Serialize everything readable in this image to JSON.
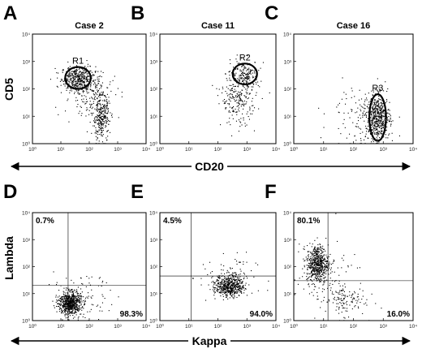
{
  "figure": {
    "ylabel_top": "CD5",
    "xlabel_top": "CD20",
    "ylabel_bottom": "Lambda",
    "xlabel_bottom": "Kappa"
  },
  "chart_data": [
    {
      "type": "scatter",
      "panel": "A",
      "title": "Case 2",
      "xlabel": "CD20",
      "ylabel": "CD5",
      "xscale": "log",
      "yscale": "log",
      "xlim": [
        1,
        10000
      ],
      "ylim": [
        1,
        10000
      ],
      "x_ticks": [
        "10⁰",
        "10¹",
        "10²",
        "10³",
        "10⁴"
      ],
      "y_ticks": [
        "10⁰",
        "10¹",
        "10²",
        "10³",
        "10⁴"
      ],
      "gates": [
        {
          "label": "R1",
          "center": [
            40,
            250
          ],
          "semi_axes_decades": [
            0.45,
            0.4
          ]
        }
      ],
      "clusters": [
        {
          "x": 40,
          "y": 250,
          "spread": [
            0.3,
            0.22
          ],
          "n": 420
        },
        {
          "x": 250,
          "y": 9,
          "spread": [
            0.15,
            0.45
          ],
          "n": 300
        },
        {
          "x": 120,
          "y": 60,
          "spread": [
            0.5,
            0.4
          ],
          "n": 160
        }
      ]
    },
    {
      "type": "scatter",
      "panel": "B",
      "title": "Case 11",
      "xlabel": "CD20",
      "ylabel": "CD5",
      "xscale": "log",
      "yscale": "log",
      "xlim": [
        1,
        10000
      ],
      "ylim": [
        1,
        10000
      ],
      "x_ticks": [
        "10⁰",
        "10¹",
        "10²",
        "10³",
        "10⁴"
      ],
      "y_ticks": [
        "10⁰",
        "10¹",
        "10²",
        "10³",
        "10⁴"
      ],
      "gates": [
        {
          "label": "R2",
          "center": [
            850,
            350
          ],
          "semi_axes_decades": [
            0.42,
            0.38
          ]
        }
      ],
      "clusters": [
        {
          "x": 850,
          "y": 350,
          "spread": [
            0.25,
            0.25
          ],
          "n": 160
        },
        {
          "x": 500,
          "y": 50,
          "spread": [
            0.3,
            0.5
          ],
          "n": 260
        }
      ]
    },
    {
      "type": "scatter",
      "panel": "C",
      "title": "Case 16",
      "xlabel": "CD20",
      "ylabel": "CD5",
      "xscale": "log",
      "yscale": "log",
      "xlim": [
        1,
        10000
      ],
      "ylim": [
        1,
        10000
      ],
      "x_ticks": [
        "10⁰",
        "10¹",
        "10²",
        "10³",
        "10⁴"
      ],
      "y_ticks": [
        "10⁰",
        "10¹",
        "10²",
        "10³",
        "10⁴"
      ],
      "gates": [
        {
          "label": "R3",
          "center": [
            650,
            9
          ],
          "semi_axes_decades": [
            0.28,
            0.85
          ]
        }
      ],
      "clusters": [
        {
          "x": 650,
          "y": 9,
          "spread": [
            0.2,
            0.4
          ],
          "n": 520
        },
        {
          "x": 150,
          "y": 10,
          "spread": [
            0.5,
            0.6
          ],
          "n": 120
        }
      ]
    },
    {
      "type": "scatter",
      "panel": "D",
      "xlabel": "Kappa",
      "ylabel": "Lambda",
      "xscale": "log",
      "yscale": "log",
      "xlim": [
        1,
        10000
      ],
      "ylim": [
        1,
        10000
      ],
      "x_ticks": [
        "10⁰",
        "10¹",
        "10²",
        "10³",
        "10⁴"
      ],
      "y_ticks": [
        "10⁰",
        "10¹",
        "10²",
        "10³",
        "10⁴"
      ],
      "quadrant": {
        "x": 18,
        "y": 20
      },
      "quadrant_labels": [
        {
          "text": "0.7%",
          "corner": "top-left"
        },
        {
          "text": "98.3%",
          "corner": "bottom-right"
        }
      ],
      "clusters": [
        {
          "x": 20,
          "y": 4.5,
          "spread": [
            0.2,
            0.22
          ],
          "n": 650
        },
        {
          "x": 60,
          "y": 8,
          "spread": [
            0.5,
            0.4
          ],
          "n": 80
        }
      ]
    },
    {
      "type": "scatter",
      "panel": "E",
      "xlabel": "Kappa",
      "ylabel": "Lambda",
      "xscale": "log",
      "yscale": "log",
      "xlim": [
        1,
        10000
      ],
      "ylim": [
        1,
        10000
      ],
      "x_ticks": [
        "10⁰",
        "10¹",
        "10²",
        "10³",
        "10⁴"
      ],
      "y_ticks": [
        "10⁰",
        "10¹",
        "10²",
        "10³",
        "10⁴"
      ],
      "quadrant": {
        "x": 12,
        "y": 45
      },
      "quadrant_labels": [
        {
          "text": "4.5%",
          "corner": "top-left"
        },
        {
          "text": "94.0%",
          "corner": "bottom-right"
        }
      ],
      "clusters": [
        {
          "x": 250,
          "y": 20,
          "spread": [
            0.25,
            0.2
          ],
          "n": 520
        },
        {
          "x": 200,
          "y": 40,
          "spread": [
            0.5,
            0.45
          ],
          "n": 80
        }
      ]
    },
    {
      "type": "scatter",
      "panel": "F",
      "xlabel": "Kappa",
      "ylabel": "Lambda",
      "xscale": "log",
      "yscale": "log",
      "xlim": [
        1,
        10000
      ],
      "ylim": [
        1,
        10000
      ],
      "x_ticks": [
        "10⁰",
        "10¹",
        "10²",
        "10³",
        "10⁴"
      ],
      "y_ticks": [
        "10⁰",
        "10¹",
        "10²",
        "10³",
        "10⁴"
      ],
      "quadrant": {
        "x": 14,
        "y": 30
      },
      "quadrant_labels": [
        {
          "text": "80.1%",
          "corner": "top-left"
        },
        {
          "text": "16.0%",
          "corner": "bottom-right"
        }
      ],
      "clusters": [
        {
          "x": 6,
          "y": 130,
          "spread": [
            0.18,
            0.35
          ],
          "n": 560
        },
        {
          "x": 40,
          "y": 6,
          "spread": [
            0.4,
            0.3
          ],
          "n": 120
        },
        {
          "x": 15,
          "y": 40,
          "spread": [
            0.6,
            0.7
          ],
          "n": 80
        }
      ]
    }
  ]
}
